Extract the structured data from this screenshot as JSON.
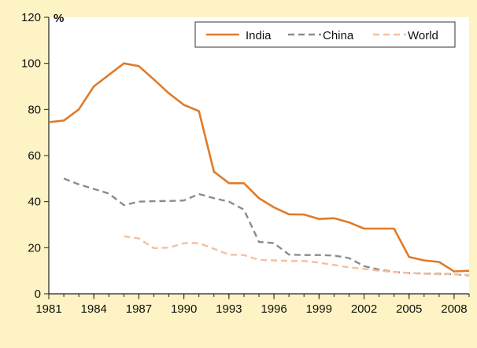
{
  "chart_data": {
    "type": "line",
    "title": "",
    "xlabel": "",
    "ylabel": "%",
    "ylim": [
      0,
      120
    ],
    "xlim": [
      1981,
      2009
    ],
    "yticks": [
      "0",
      "20",
      "40",
      "60",
      "80",
      "100",
      "120"
    ],
    "xticks": [
      "1981",
      "1984",
      "1987",
      "1990",
      "1993",
      "1996",
      "1999",
      "2002",
      "2005",
      "2008"
    ],
    "grid": false,
    "legend": "top-right",
    "series": [
      {
        "name": "India",
        "style": "solid",
        "color": "#e07b2a",
        "x": [
          1981,
          1982,
          1983,
          1984,
          1985,
          1986,
          1987,
          1988,
          1989,
          1990,
          1991,
          1992,
          1993,
          1994,
          1995,
          1996,
          1997,
          1998,
          1999,
          2000,
          2001,
          2002,
          2003,
          2004,
          2005,
          2006,
          2007,
          2008,
          2009
        ],
        "y": [
          74.5,
          75.2,
          80,
          90,
          95,
          100,
          98.8,
          93,
          87,
          82,
          79.3,
          53,
          48,
          48,
          41.5,
          37.5,
          34.5,
          34.4,
          32.5,
          32.8,
          31,
          28.3,
          28.3,
          28.3,
          16,
          14.5,
          13.8,
          9.7,
          10
        ]
      },
      {
        "name": "China",
        "style": "dashed",
        "color": "#8c8c8c",
        "x": [
          1982,
          1983,
          1984,
          1985,
          1986,
          1987,
          1988,
          1989,
          1990,
          1991,
          1992,
          1993,
          1994,
          1995,
          1996,
          1997,
          1998,
          1999,
          2000,
          2001,
          2002,
          2003,
          2004,
          2005,
          2006,
          2007,
          2008,
          2009
        ],
        "y": [
          50,
          47.5,
          45.5,
          43.5,
          38.5,
          40,
          40.2,
          40.3,
          40.5,
          43.3,
          41.5,
          40,
          36.5,
          22.5,
          22,
          17,
          16.8,
          16.8,
          16.6,
          15.5,
          12,
          10.5,
          9.5,
          9,
          8.8,
          8.7,
          8.5,
          8
        ]
      },
      {
        "name": "World",
        "style": "dashed",
        "color": "#f5c0a0",
        "x": [
          1986,
          1987,
          1988,
          1989,
          1990,
          1991,
          1992,
          1993,
          1994,
          1995,
          1996,
          1997,
          1998,
          1999,
          2000,
          2001,
          2002,
          2003,
          2004,
          2005,
          2006,
          2007,
          2008,
          2009
        ],
        "y": [
          25,
          24,
          19.8,
          20,
          22,
          22,
          19.5,
          17,
          16.8,
          14.7,
          14.5,
          14.3,
          14.2,
          13.5,
          12.5,
          11.5,
          10.8,
          10,
          9.5,
          9,
          8.7,
          8.5,
          8.5,
          8.2
        ]
      }
    ]
  }
}
